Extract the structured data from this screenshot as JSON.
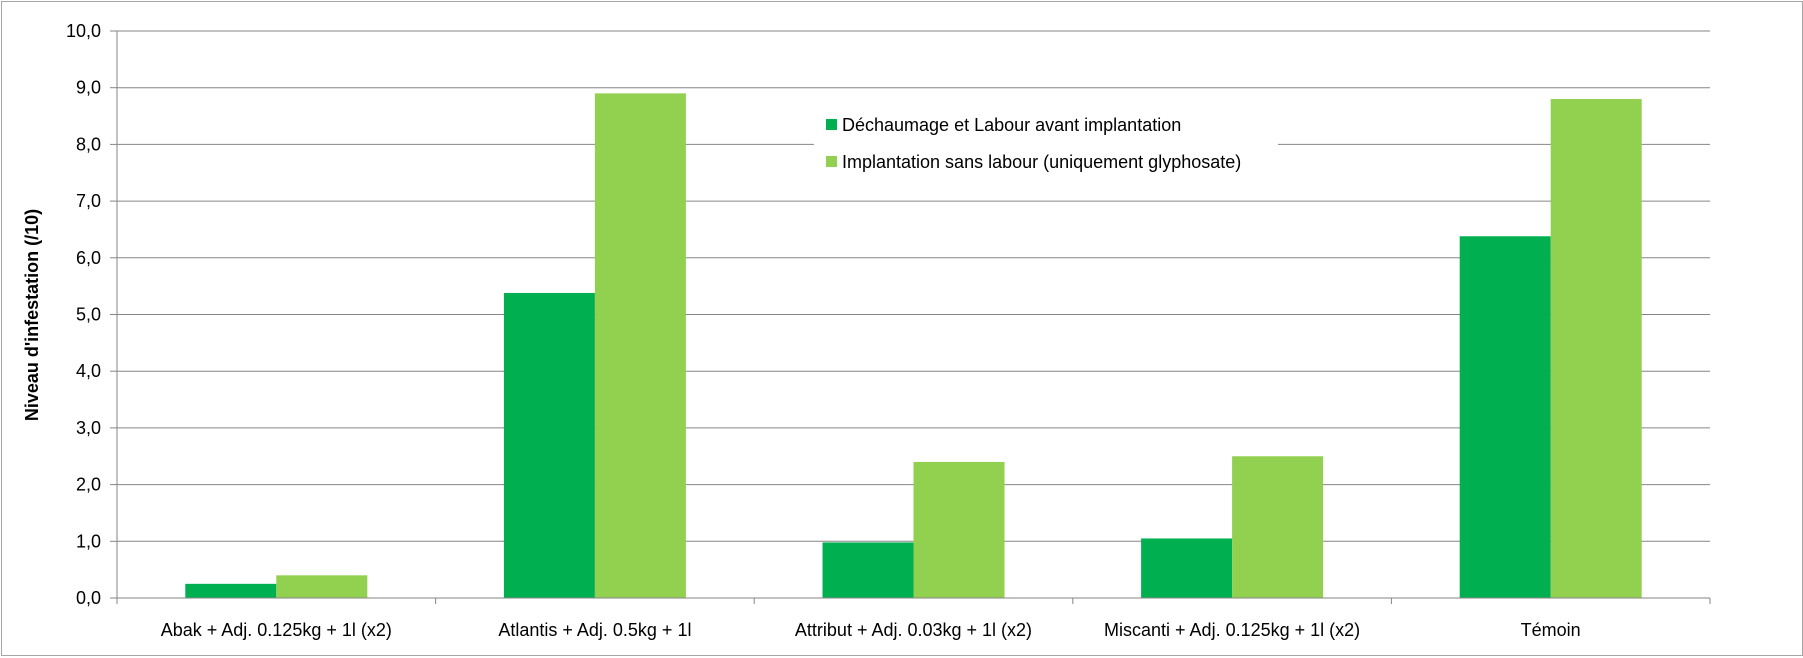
{
  "chart_data": {
    "type": "bar",
    "title": "",
    "xlabel": "",
    "ylabel": "Niveau d'infestation (/10)",
    "ylim": [
      0,
      10
    ],
    "ytick_step": 1,
    "ytick_labels": [
      "0,0",
      "1,0",
      "2,0",
      "3,0",
      "4,0",
      "5,0",
      "6,0",
      "7,0",
      "8,0",
      "9,0",
      "10,0"
    ],
    "grid": true,
    "legend_position": "top-center",
    "categories": [
      "Abak + Adj. 0.125kg + 1l (x2)",
      "Atlantis + Adj. 0.5kg + 1l",
      "Attribut + Adj. 0.03kg + 1l (x2)",
      "Miscanti + Adj. 0.125kg + 1l (x2)",
      "Témoin"
    ],
    "series": [
      {
        "name": "Déchaumage et Labour avant implantation",
        "color": "#00b050",
        "values": [
          0.25,
          5.38,
          0.98,
          1.05,
          6.38
        ]
      },
      {
        "name": "Implantation sans labour (uniquement glyphosate)",
        "color": "#92d050",
        "values": [
          0.4,
          8.9,
          2.4,
          2.5,
          8.8
        ]
      }
    ]
  }
}
